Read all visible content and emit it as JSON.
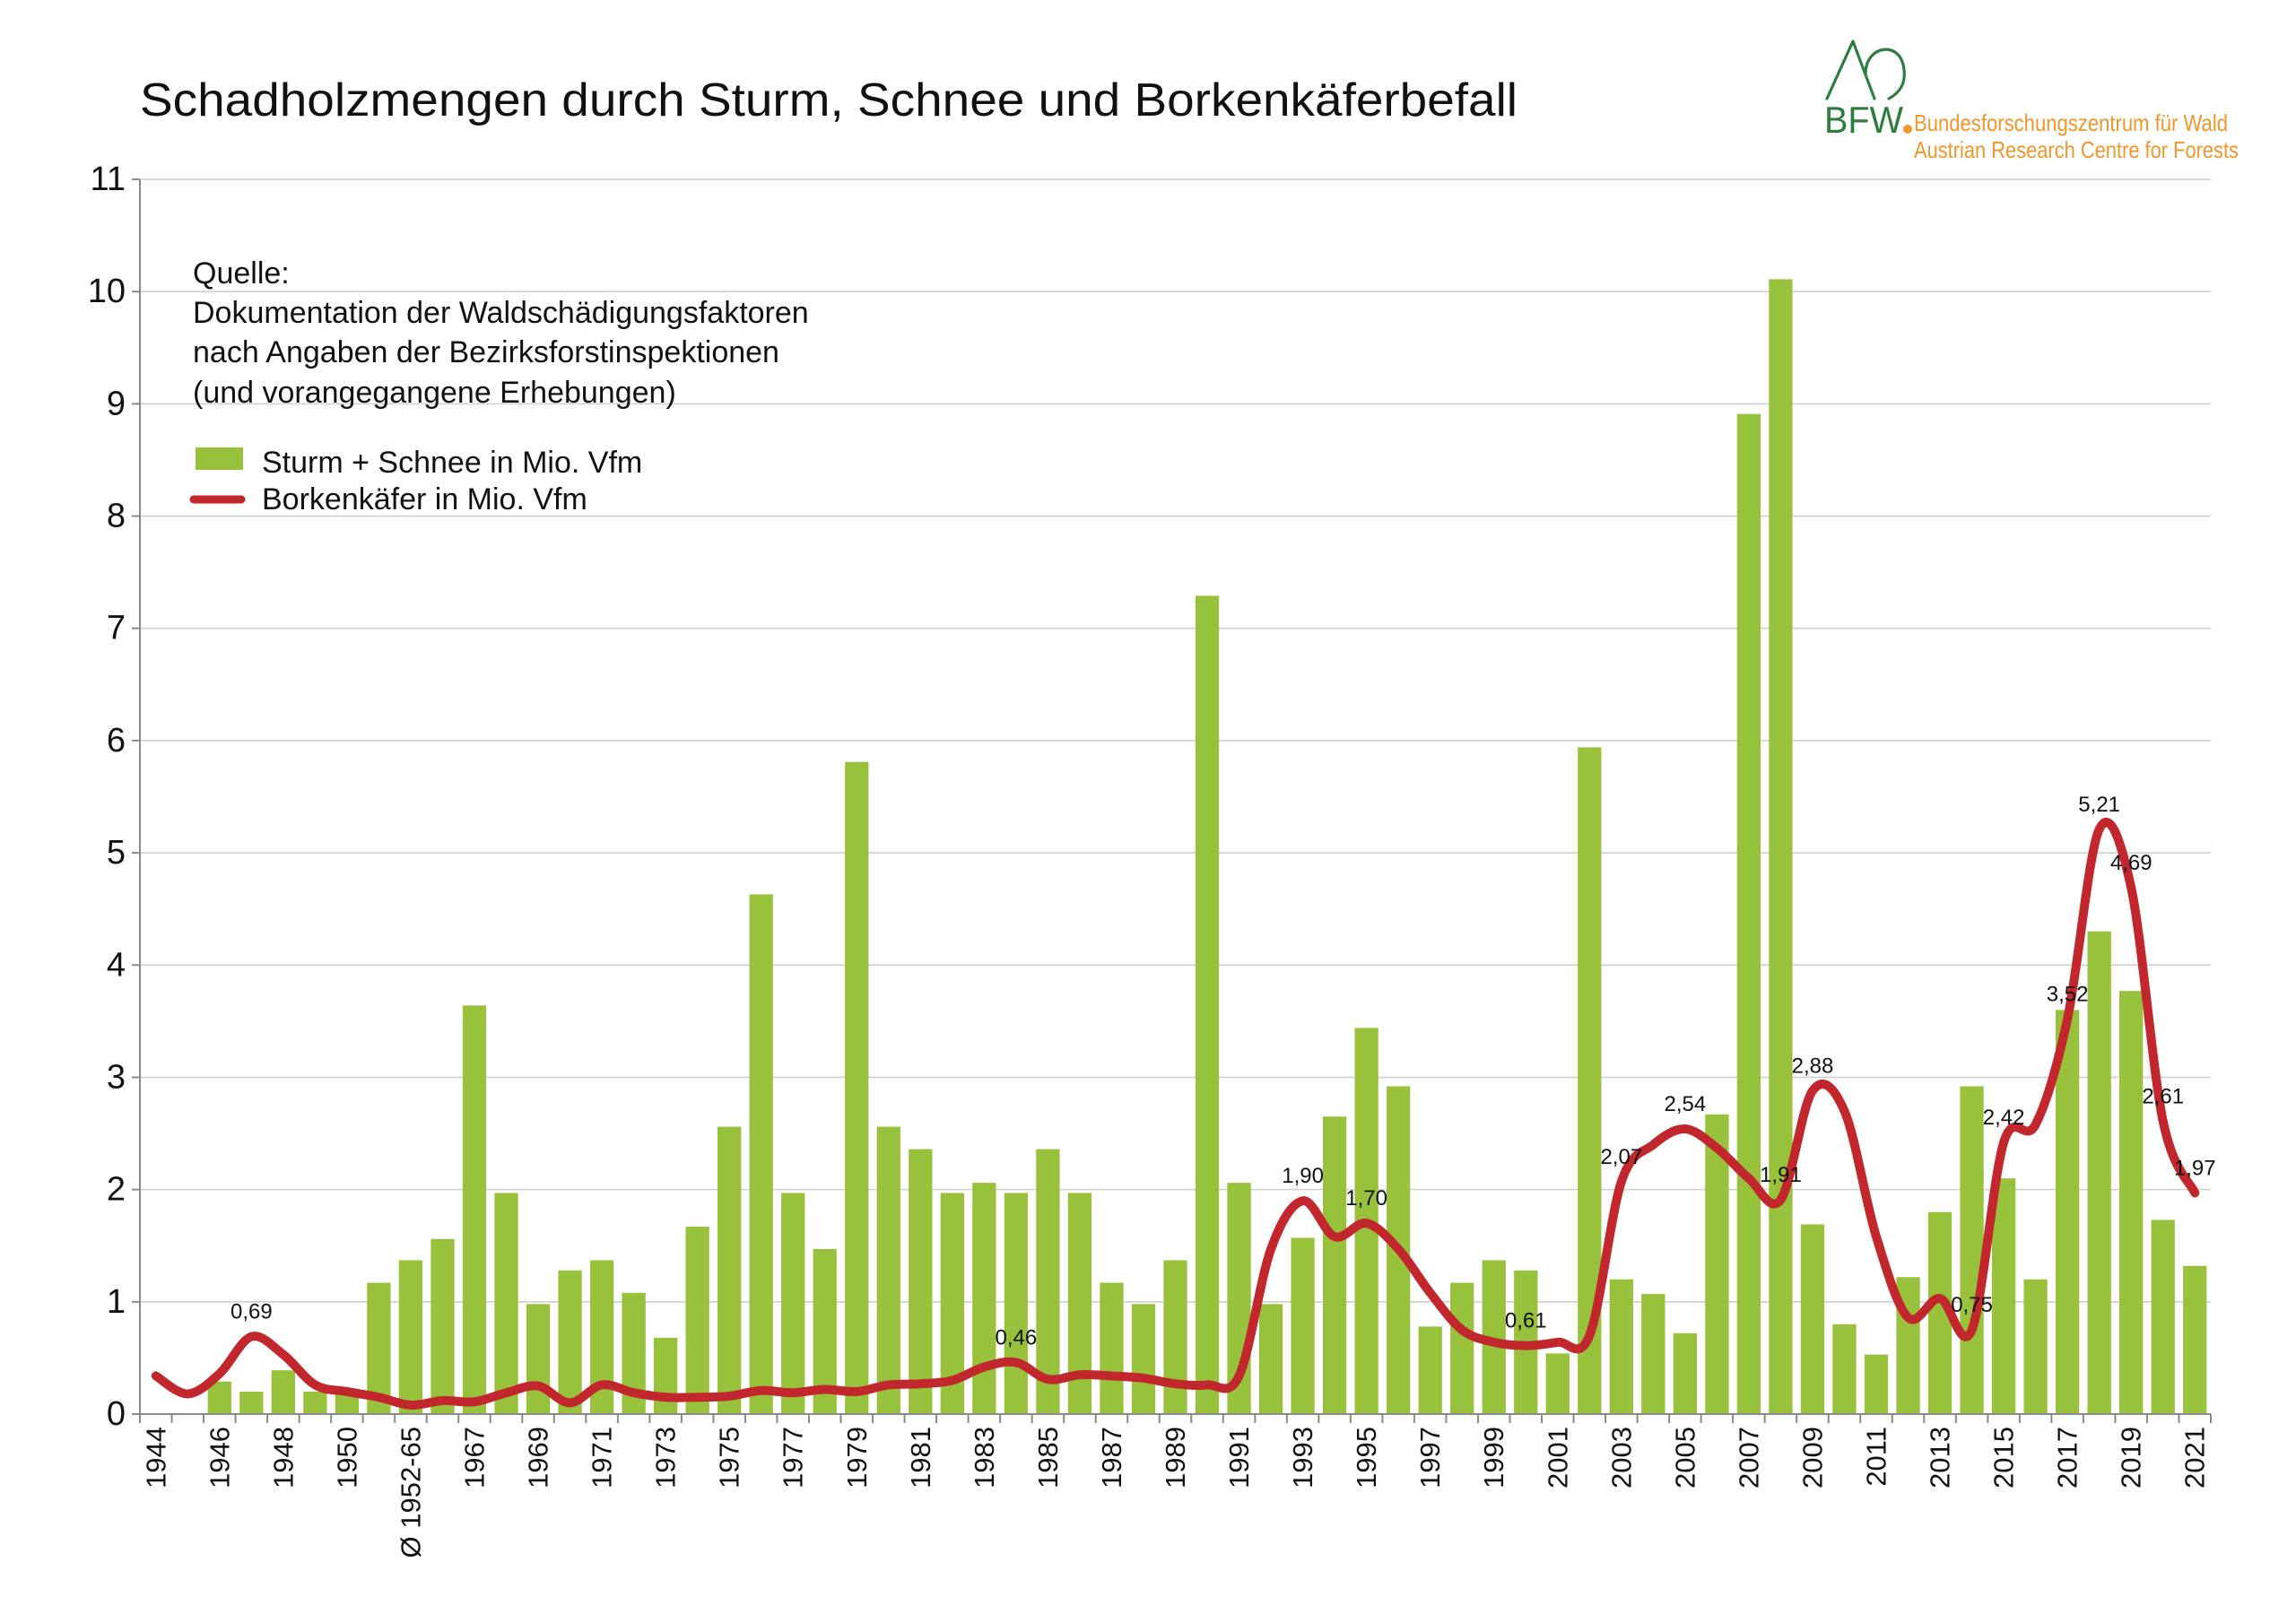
{
  "chart_data": {
    "type": "bar",
    "title": "Schadholzmengen durch Sturm, Schnee und Borkenkäferbefall",
    "xlabel": "",
    "ylabel": "",
    "ylim": [
      0,
      11
    ],
    "yticks": [
      0,
      1,
      2,
      3,
      4,
      5,
      6,
      7,
      8,
      9,
      10,
      11
    ],
    "grid": true,
    "legend_position": "top-left",
    "categories": [
      "1944",
      "",
      "1946",
      "",
      "1948",
      "",
      "1950",
      "",
      "Ø 1952-65",
      "",
      "1967",
      "",
      "1969",
      "",
      "1971",
      "",
      "1973",
      "",
      "1975",
      "",
      "1977",
      "",
      "1979",
      "",
      "1981",
      "",
      "1983",
      "",
      "1985",
      "",
      "1987",
      "",
      "1989",
      "",
      "1991",
      "",
      "1993",
      "",
      "1995",
      "",
      "1997",
      "",
      "1999",
      "",
      "2001",
      "",
      "2003",
      "",
      "2005",
      "",
      "2007",
      "",
      "2009",
      "",
      "2011",
      "",
      "2013",
      "",
      "2015",
      "",
      "2017",
      "",
      "2019",
      "",
      "2021"
    ],
    "series": [
      {
        "name": "Sturm + Schnee in Mio. Vfm",
        "type": "bar",
        "color": "#98c23c",
        "values": [
          null,
          null,
          0.29,
          0.2,
          0.39,
          0.2,
          0.2,
          1.17,
          1.37,
          1.56,
          3.64,
          1.97,
          0.98,
          1.28,
          1.37,
          1.08,
          0.68,
          1.67,
          2.56,
          4.63,
          1.97,
          1.47,
          5.81,
          2.56,
          2.36,
          1.97,
          2.06,
          1.97,
          2.36,
          1.97,
          1.17,
          0.98,
          1.37,
          7.29,
          2.06,
          0.98,
          1.57,
          2.65,
          3.44,
          2.92,
          0.78,
          1.17,
          1.37,
          1.28,
          0.54,
          5.94,
          1.2,
          1.07,
          0.72,
          2.67,
          8.91,
          10.11,
          1.69,
          0.8,
          0.53,
          1.22,
          1.8,
          2.92,
          2.1,
          1.2,
          3.6,
          4.3,
          3.77,
          1.73,
          1.32
        ]
      },
      {
        "name": "Borkenkäfer in Mio. Vfm",
        "type": "line",
        "color": "#c1272d",
        "smooth": true,
        "values": [
          0.34,
          0.18,
          0.36,
          0.69,
          0.53,
          0.26,
          0.2,
          0.15,
          0.08,
          0.12,
          0.11,
          0.19,
          0.25,
          0.1,
          0.26,
          0.19,
          0.15,
          0.15,
          0.16,
          0.21,
          0.19,
          0.22,
          0.2,
          0.26,
          0.27,
          0.3,
          0.42,
          0.46,
          0.31,
          0.35,
          0.34,
          0.32,
          0.27,
          0.26,
          0.34,
          1.47,
          1.9,
          1.58,
          1.7,
          1.47,
          1.08,
          0.75,
          0.64,
          0.61,
          0.64,
          0.7,
          2.07,
          2.4,
          2.54,
          2.37,
          2.1,
          1.91,
          2.88,
          2.7,
          1.58,
          0.86,
          1.03,
          0.75,
          2.42,
          2.58,
          3.52,
          5.21,
          4.69,
          2.61,
          1.97
        ],
        "data_labels": [
          "",
          "",
          "",
          "0,69",
          "",
          "",
          "",
          "",
          "",
          "",
          "",
          "",
          "",
          "",
          "",
          "",
          "",
          "",
          "",
          "",
          "",
          "",
          "",
          "",
          "",
          "",
          "",
          "0,46",
          "",
          "",
          "",
          "",
          "",
          "",
          "",
          "",
          "1,90",
          "",
          "1,70",
          "",
          "",
          "",
          "",
          "0,61",
          "",
          "",
          "2,07",
          "",
          "2,54",
          "",
          "",
          "1,91",
          "2,88",
          "",
          "",
          "",
          "",
          "0,75",
          "2,42",
          "",
          "3,52",
          "5,21",
          "4,69",
          "2,61",
          "1,97"
        ]
      }
    ]
  },
  "source": {
    "heading": "Quelle:",
    "lines": [
      "Dokumentation der Waldschädigungsfaktoren",
      "nach Angaben der Bezirksforstinspektionen",
      "(und vorangegangene Erhebungen)"
    ]
  },
  "logo": {
    "icon": "tree-mountain-icon",
    "mark": "BFW",
    "name_de": "Bundesforschungszentrum für Wald",
    "name_en": "Austrian Research Centre for Forests"
  },
  "colors": {
    "bars": "#98c23c",
    "line": "#c1272d",
    "logo_green": "#2d7d3f",
    "logo_orange": "#f0962a",
    "grid": "#cfcfcf"
  }
}
